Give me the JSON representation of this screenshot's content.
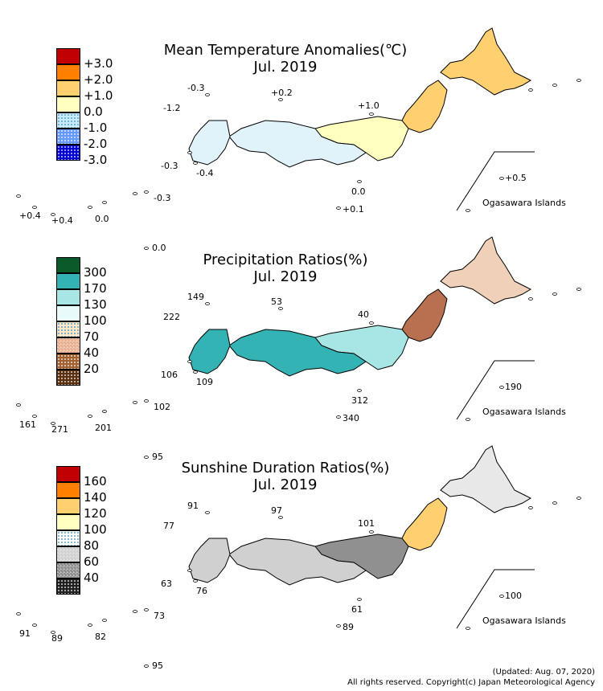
{
  "panels": [
    {
      "title": "Mean Temperature Anomalies(℃)",
      "subtitle": "Jul. 2019",
      "legend": [
        {
          "label": "+3.0",
          "color": "#c00000",
          "pattern": "solid"
        },
        {
          "label": "+2.0",
          "color": "#ff8000",
          "pattern": "solid"
        },
        {
          "label": "+1.0",
          "color": "#ffd070",
          "pattern": "solid"
        },
        {
          "label": "0.0",
          "color": "#ffffc0",
          "pattern": "solid"
        },
        {
          "label": "-1.0",
          "color": "#c8ecff",
          "pattern": "dots-light"
        },
        {
          "label": "-2.0",
          "color": "#6699ff",
          "pattern": "dots"
        },
        {
          "label": "-3.0",
          "color": "#0000d0",
          "pattern": "dots"
        }
      ],
      "station_values": {
        "tsushima": "-0.3",
        "goto_n": "-1.2",
        "oki": "+0.2",
        "sado": "+1.0",
        "sw_a": "-0.3",
        "sw_b": "-0.4",
        "hachijo": "0.0",
        "south_a": "+0.1",
        "ogasawara": "+0.5",
        "ryukyu_w1": "+0.4",
        "ryukyu_w2": "+0.4",
        "okinawa": "0.0",
        "daito": "-0.3",
        "minami": "0.0"
      },
      "ogasawara_label": "Ogasawara Islands"
    },
    {
      "title": "Precipitation Ratios(%)",
      "subtitle": "Jul. 2019",
      "legend": [
        {
          "label": "300",
          "color": "#0a5a2a",
          "pattern": "solid"
        },
        {
          "label": "170",
          "color": "#33b3b3",
          "pattern": "solid"
        },
        {
          "label": "130",
          "color": "#a8e6e6",
          "pattern": "solid"
        },
        {
          "label": "100",
          "color": "#e8fafa",
          "pattern": "solid"
        },
        {
          "label": "70",
          "color": "#ffe8c8",
          "pattern": "dots-light"
        },
        {
          "label": "40",
          "color": "#e8b090",
          "pattern": "check"
        },
        {
          "label": "20",
          "color": "#a06030",
          "pattern": "dots"
        },
        {
          "label": "",
          "color": "#5a3010",
          "pattern": "dots"
        }
      ],
      "station_values": {
        "tsushima": "149",
        "goto_n": "222",
        "oki": "53",
        "sado": "40",
        "sw_a": "106",
        "sw_b": "109",
        "hachijo": "312",
        "south_a": "340",
        "ogasawara": "190",
        "ryukyu_w1": "161",
        "ryukyu_w2": "271",
        "okinawa": "201",
        "daito": "102",
        "minami": "95"
      },
      "ogasawara_label": "Ogasawara Islands"
    },
    {
      "title": "Sunshine Duration Ratios(%)",
      "subtitle": "Jul. 2019",
      "legend": [
        {
          "label": "160",
          "color": "#c00000",
          "pattern": "solid"
        },
        {
          "label": "140",
          "color": "#ff8000",
          "pattern": "solid"
        },
        {
          "label": "120",
          "color": "#ffd070",
          "pattern": "solid"
        },
        {
          "label": "100",
          "color": "#ffffc0",
          "pattern": "solid"
        },
        {
          "label": "80",
          "color": "#ffffff",
          "pattern": "dots-light"
        },
        {
          "label": "60",
          "color": "#d0d0d0",
          "pattern": "check"
        },
        {
          "label": "40",
          "color": "#909090",
          "pattern": "check"
        },
        {
          "label": "",
          "color": "#202020",
          "pattern": "dots"
        }
      ],
      "station_values": {
        "tsushima": "91",
        "goto_n": "77",
        "oki": "97",
        "sado": "101",
        "sw_a": "63",
        "sw_b": "76",
        "hachijo": "61",
        "south_a": "89",
        "ogasawara": "100",
        "ryukyu_w1": "91",
        "ryukyu_w2": "89",
        "okinawa": "82",
        "daito": "73",
        "minami": "95"
      },
      "ogasawara_label": "Ogasawara Islands"
    }
  ],
  "footer": {
    "updated": "(Updated: Aug. 07, 2020)",
    "copyright": "All rights reserved. Copyright(c) Japan Meteorological Agency"
  }
}
